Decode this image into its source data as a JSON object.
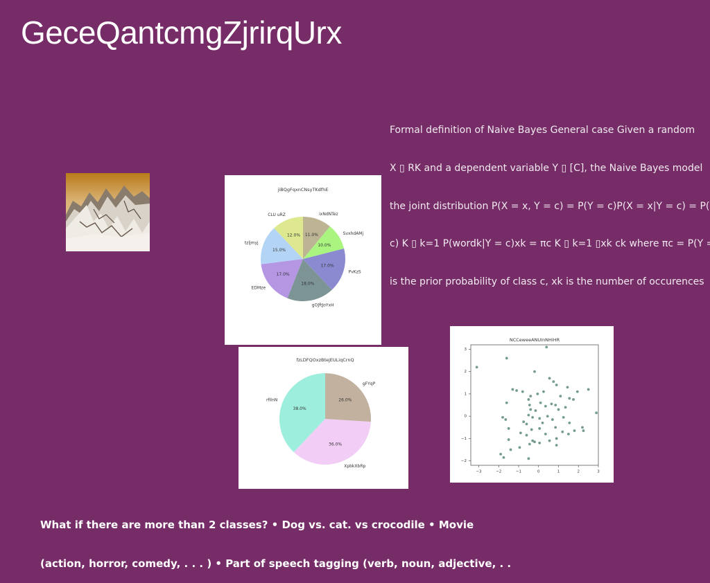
{
  "slide": {
    "title": "GeceQantcmgZjrirqUrx",
    "paragraph_lines": [
      "Formal definition of Naive Bayes General case Given a random",
      "X ▯ RK and a dependent variable Y ▯ [C], the Naive Bayes model",
      "the joint distribution P(X = x, Y = c) = P(Y = c)P(X = x|Y = c) = P(Y",
      "c) K ▯ k=1 P(wordk|Y = c)xk = πc K ▯ k=1 ▯xk ck where πc = P(Y =",
      "is the prior probability of class c, xk is the number of occurences"
    ],
    "bottom_lines": [
      "What if there are more than 2 classes? • Dog vs. cat. vs crocodile • Movie",
      "(action, horror, comedy, . . . ) • Part of speech tagging (verb, noun, adjective, . ."
    ]
  },
  "colors": {
    "background": "#762c67",
    "scatter_point": "#5e8a7c"
  },
  "chart_data": [
    {
      "type": "pie",
      "title": "jiBQgFqxnCNsyTKdfhE",
      "start_angle": 90,
      "slices": [
        {
          "label": "CLU uRZ",
          "value": 12.0,
          "color": "#dde88f"
        },
        {
          "label": "tzljmyj",
          "value": 15.0,
          "color": "#b3d4f5"
        },
        {
          "label": "EDMze",
          "value": 17.0,
          "color": "#b596e3"
        },
        {
          "label": "gOJftJoYxH",
          "value": 18.0,
          "color": "#7d9496"
        },
        {
          "label": "PvKzS",
          "value": 17.0,
          "color": "#8b8ad1"
        },
        {
          "label": "SvxhdAMj",
          "value": 10.0,
          "color": "#a9f57f"
        },
        {
          "label": "ixNdNTez",
          "value": 11.0,
          "color": "#bdb494"
        }
      ]
    },
    {
      "type": "pie",
      "title": "fzLDFQOxzBtejEULiqCrnQ",
      "start_angle": 90,
      "slices": [
        {
          "label": "rfIlnN",
          "value": 38.0,
          "color": "#9eeedd"
        },
        {
          "label": "XpbkXbRp",
          "value": 36.0,
          "color": "#f2cef7"
        },
        {
          "label": "gFYqP",
          "value": 26.0,
          "color": "#c1b19e"
        }
      ]
    },
    {
      "type": "scatter",
      "title": "NCCeweeANUInNHiHR",
      "xlim": [
        -3.4,
        3.0
      ],
      "ylim": [
        -2.2,
        3.2
      ],
      "xticks": [
        -3,
        -2,
        -1,
        0,
        1,
        2,
        3
      ],
      "yticks": [
        -2,
        -1,
        0,
        1,
        2,
        3
      ],
      "points": [
        [
          -3.1,
          2.2
        ],
        [
          -1.6,
          2.6
        ],
        [
          0.4,
          3.1
        ],
        [
          -0.2,
          2.0
        ],
        [
          -1.3,
          1.2
        ],
        [
          -1.1,
          1.15
        ],
        [
          -0.8,
          1.1
        ],
        [
          -0.4,
          0.9
        ],
        [
          0.55,
          1.7
        ],
        [
          0.75,
          1.55
        ],
        [
          0.9,
          1.4
        ],
        [
          1.45,
          1.3
        ],
        [
          1.95,
          1.1
        ],
        [
          2.5,
          1.2
        ],
        [
          0.25,
          1.1
        ],
        [
          -0.05,
          1.0
        ],
        [
          1.1,
          0.9
        ],
        [
          -0.5,
          0.75
        ],
        [
          1.55,
          0.8
        ],
        [
          1.75,
          0.75
        ],
        [
          -1.6,
          0.6
        ],
        [
          -0.45,
          0.5
        ],
        [
          0.1,
          0.6
        ],
        [
          0.65,
          0.55
        ],
        [
          0.85,
          0.5
        ],
        [
          1.35,
          0.4
        ],
        [
          -0.4,
          0.3
        ],
        [
          -0.15,
          0.25
        ],
        [
          0.35,
          0.45
        ],
        [
          1.0,
          0.3
        ],
        [
          2.9,
          0.15
        ],
        [
          -1.8,
          -0.05
        ],
        [
          -1.65,
          -0.15
        ],
        [
          -0.5,
          0.05
        ],
        [
          -0.3,
          -0.05
        ],
        [
          0.05,
          -0.1
        ],
        [
          0.45,
          0.0
        ],
        [
          0.7,
          -0.15
        ],
        [
          1.25,
          -0.05
        ],
        [
          -0.75,
          -0.25
        ],
        [
          -0.6,
          -0.35
        ],
        [
          0.2,
          -0.3
        ],
        [
          1.55,
          -0.3
        ],
        [
          2.2,
          -0.5
        ],
        [
          -1.5,
          -0.55
        ],
        [
          -0.35,
          -0.6
        ],
        [
          0.05,
          -0.55
        ],
        [
          0.85,
          -0.5
        ],
        [
          1.8,
          -0.65
        ],
        [
          2.25,
          -0.65
        ],
        [
          -0.9,
          -0.75
        ],
        [
          -0.6,
          -0.85
        ],
        [
          0.35,
          -0.8
        ],
        [
          1.2,
          -0.7
        ],
        [
          1.5,
          -0.8
        ],
        [
          -0.3,
          -1.1
        ],
        [
          0.05,
          -1.2
        ],
        [
          0.55,
          -1.1
        ],
        [
          0.9,
          -1.0
        ],
        [
          -1.5,
          -1.05
        ],
        [
          -1.4,
          -1.5
        ],
        [
          -0.95,
          -1.4
        ],
        [
          -0.45,
          -1.25
        ],
        [
          -0.2,
          -1.15
        ],
        [
          0.9,
          -1.3
        ],
        [
          -1.9,
          -1.7
        ],
        [
          -1.75,
          -1.85
        ],
        [
          -0.5,
          -1.9
        ]
      ]
    }
  ]
}
